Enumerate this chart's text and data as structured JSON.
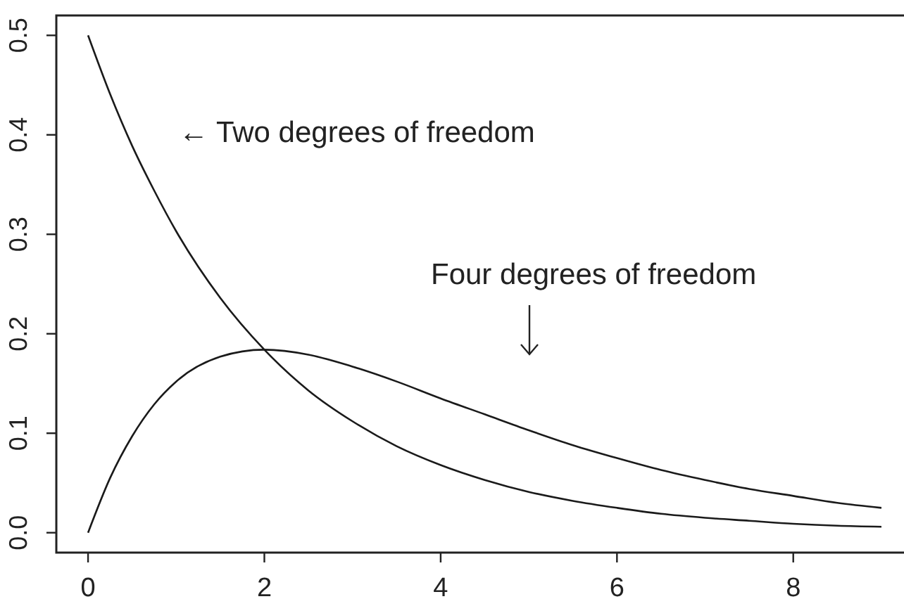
{
  "chart_data": {
    "type": "line",
    "x": [
      0,
      0.25,
      0.5,
      0.75,
      1,
      1.5,
      2,
      2.5,
      3,
      3.5,
      4,
      4.5,
      5,
      5.5,
      6,
      6.5,
      7,
      7.5,
      8,
      8.5,
      9
    ],
    "series": [
      {
        "color": "#1a1a1a",
        "values": [
          0.5,
          0.441,
          0.389,
          0.344,
          0.303,
          0.236,
          0.184,
          0.143,
          0.112,
          0.087,
          0.068,
          0.053,
          0.041,
          0.032,
          0.025,
          0.019,
          0.015,
          0.012,
          0.009,
          0.007,
          0.006
        ]
      },
      {
        "color": "#1a1a1a",
        "values": [
          0,
          0.055,
          0.097,
          0.129,
          0.152,
          0.177,
          0.184,
          0.179,
          0.167,
          0.152,
          0.135,
          0.119,
          0.103,
          0.088,
          0.075,
          0.063,
          0.053,
          0.044,
          0.037,
          0.03,
          0.025
        ]
      }
    ],
    "xlim": [
      -0.36,
      9.36
    ],
    "ylim": [
      -0.02,
      0.52
    ],
    "xticks": [
      0,
      2,
      4,
      6,
      8
    ],
    "yticks": [
      {
        "value": 0,
        "label": "0.0"
      },
      0.1,
      0.2,
      0.3,
      0.4,
      0.5
    ],
    "annotations": [
      "← Two degrees of freedom",
      "Four degrees of freedom"
    ]
  }
}
